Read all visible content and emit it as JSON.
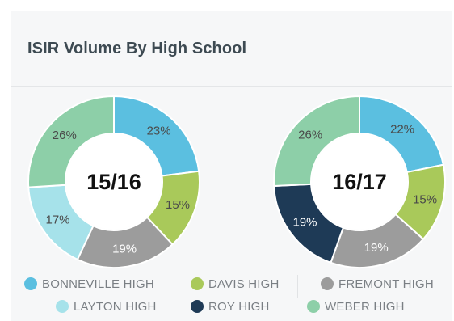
{
  "card": {
    "title": "ISIR Volume By High School"
  },
  "chart_data": [
    {
      "type": "pie",
      "center_label": "15/16",
      "categories": [
        "BONNEVILLE HIGH",
        "DAVIS HIGH",
        "FREMONT HIGH",
        "LAYTON HIGH",
        "WEBER HIGH"
      ],
      "values": [
        23,
        15,
        19,
        17,
        26
      ],
      "colors": [
        "#5bbfe0",
        "#a9c95a",
        "#9c9c9c",
        "#a6e2ea",
        "#8dcfa8"
      ],
      "labels": [
        "23%",
        "15%",
        "19%",
        "17%",
        "26%"
      ]
    },
    {
      "type": "pie",
      "center_label": "16/17",
      "categories": [
        "BONNEVILLE HIGH",
        "DAVIS HIGH",
        "FREMONT HIGH",
        "ROY HIGH",
        "WEBER HIGH"
      ],
      "values": [
        22,
        15,
        19,
        19,
        26
      ],
      "colors": [
        "#5bbfe0",
        "#a9c95a",
        "#9c9c9c",
        "#1e3a56",
        "#8dcfa8"
      ],
      "labels": [
        "22%",
        "15%",
        "19%",
        "19%",
        "26%"
      ]
    }
  ],
  "legend": [
    {
      "label": "BONNEVILLE HIGH",
      "color": "#5bbfe0"
    },
    {
      "label": "DAVIS HIGH",
      "color": "#a9c95a"
    },
    {
      "label": "FREMONT HIGH",
      "color": "#9c9c9c"
    },
    {
      "label": "LAYTON HIGH",
      "color": "#a6e2ea"
    },
    {
      "label": "ROY HIGH",
      "color": "#1e3a56"
    },
    {
      "label": "WEBER HIGH",
      "color": "#8dcfa8"
    }
  ]
}
